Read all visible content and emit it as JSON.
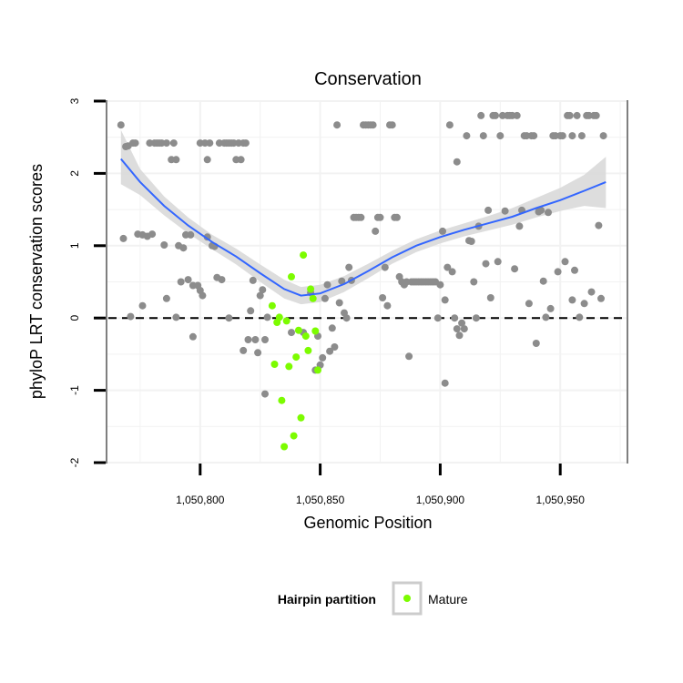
{
  "chart_data": {
    "type": "scatter",
    "title": "Conservation",
    "xlabel": "Genomic Position",
    "ylabel": "phyloP LRT conservation scores",
    "xlim": [
      1050761,
      1050978
    ],
    "ylim": [
      -2,
      3
    ],
    "x_ticks": [
      1050800,
      1050850,
      1050900,
      1050950
    ],
    "x_tick_labels": [
      "1,050,800",
      "1,050,850",
      "1,050,900",
      "1,050,950"
    ],
    "y_ticks": [
      -2,
      -1,
      0,
      1,
      2,
      3
    ],
    "y_tick_labels": [
      "-2",
      "-1",
      "0",
      "1",
      "2",
      "3"
    ],
    "grid": true,
    "reference_line": {
      "y": 0,
      "style": "dashed"
    },
    "legend": {
      "title": "Hairpin partition",
      "position": "bottom",
      "entries": [
        {
          "label": "Mature",
          "color": "#7cfc00"
        }
      ]
    },
    "colors": {
      "other": "#8c8c8c",
      "mature": "#7cfc00",
      "smooth": "#3366ff",
      "band": "#d9d9d9"
    },
    "series": [
      {
        "group": "other",
        "points": [
          [
            1050767,
            2.67
          ],
          [
            1050768,
            1.1
          ],
          [
            1050769,
            2.37
          ],
          [
            1050770,
            2.38
          ],
          [
            1050771,
            0.02
          ],
          [
            1050772,
            2.42
          ],
          [
            1050773,
            2.42
          ],
          [
            1050774,
            1.16
          ],
          [
            1050776,
            1.15
          ],
          [
            1050776,
            0.17
          ],
          [
            1050778,
            1.13
          ],
          [
            1050779,
            2.42
          ],
          [
            1050780,
            1.16
          ],
          [
            1050781,
            2.42
          ],
          [
            1050782,
            2.42
          ],
          [
            1050783,
            2.42
          ],
          [
            1050784,
            2.42
          ],
          [
            1050785,
            1.01
          ],
          [
            1050786,
            2.42
          ],
          [
            1050786,
            0.27
          ],
          [
            1050788,
            2.19
          ],
          [
            1050789,
            2.42
          ],
          [
            1050790,
            2.19
          ],
          [
            1050790,
            0.01
          ],
          [
            1050791,
            1.0
          ],
          [
            1050792,
            0.5
          ],
          [
            1050793,
            0.97
          ],
          [
            1050794,
            1.15
          ],
          [
            1050795,
            0.53
          ],
          [
            1050796,
            1.15
          ],
          [
            1050797,
            0.45
          ],
          [
            1050797,
            -0.26
          ],
          [
            1050799,
            0.45
          ],
          [
            1050800,
            2.42
          ],
          [
            1050800,
            0.38
          ],
          [
            1050801,
            0.31
          ],
          [
            1050802,
            2.42
          ],
          [
            1050803,
            2.19
          ],
          [
            1050803,
            1.12
          ],
          [
            1050804,
            2.42
          ],
          [
            1050805,
            1.0
          ],
          [
            1050806,
            0.99
          ],
          [
            1050807,
            0.56
          ],
          [
            1050808,
            2.42
          ],
          [
            1050809,
            0.53
          ],
          [
            1050810,
            2.42
          ],
          [
            1050811,
            2.42
          ],
          [
            1050812,
            0.0
          ],
          [
            1050812,
            2.42
          ],
          [
            1050813,
            2.42
          ],
          [
            1050814,
            2.42
          ],
          [
            1050815,
            2.19
          ],
          [
            1050816,
            2.42
          ],
          [
            1050817,
            2.19
          ],
          [
            1050818,
            2.42
          ],
          [
            1050818,
            -0.45
          ],
          [
            1050819,
            2.42
          ],
          [
            1050820,
            -0.3
          ],
          [
            1050821,
            0.1
          ],
          [
            1050822,
            0.52
          ],
          [
            1050823,
            -0.3
          ],
          [
            1050824,
            -0.48
          ],
          [
            1050825,
            0.31
          ],
          [
            1050826,
            0.39
          ],
          [
            1050827,
            -0.3
          ],
          [
            1050827,
            -1.05
          ],
          [
            1050828,
            0.01
          ],
          [
            1050838,
            -0.2
          ],
          [
            1050843,
            -0.2
          ],
          [
            1050846,
            0.35
          ],
          [
            1050848,
            -0.72
          ],
          [
            1050849,
            -0.25
          ],
          [
            1050850,
            -0.65
          ],
          [
            1050851,
            -0.55
          ],
          [
            1050852,
            0.27
          ],
          [
            1050853,
            0.46
          ],
          [
            1050854,
            -0.46
          ],
          [
            1050855,
            -0.14
          ],
          [
            1050856,
            -0.4
          ],
          [
            1050857,
            2.67
          ],
          [
            1050858,
            0.21
          ],
          [
            1050859,
            0.51
          ],
          [
            1050860,
            0.07
          ],
          [
            1050861,
            0.0
          ],
          [
            1050862,
            0.7
          ],
          [
            1050863,
            0.52
          ],
          [
            1050864,
            1.39
          ],
          [
            1050865,
            1.39
          ],
          [
            1050866,
            1.39
          ],
          [
            1050867,
            1.39
          ],
          [
            1050868,
            2.67
          ],
          [
            1050869,
            2.67
          ],
          [
            1050870,
            2.67
          ],
          [
            1050871,
            2.67
          ],
          [
            1050872,
            2.67
          ],
          [
            1050873,
            1.2
          ],
          [
            1050874,
            1.39
          ],
          [
            1050875,
            1.39
          ],
          [
            1050876,
            0.28
          ],
          [
            1050877,
            0.7
          ],
          [
            1050878,
            0.17
          ],
          [
            1050879,
            2.67
          ],
          [
            1050880,
            2.67
          ],
          [
            1050881,
            1.39
          ],
          [
            1050882,
            1.39
          ],
          [
            1050883,
            0.57
          ],
          [
            1050884,
            0.5
          ],
          [
            1050885,
            0.46
          ],
          [
            1050886,
            0.5
          ],
          [
            1050887,
            -0.53
          ],
          [
            1050888,
            0.5
          ],
          [
            1050889,
            0.5
          ],
          [
            1050890,
            0.5
          ],
          [
            1050891,
            0.5
          ],
          [
            1050892,
            0.5
          ],
          [
            1050893,
            0.5
          ],
          [
            1050894,
            0.5
          ],
          [
            1050895,
            0.5
          ],
          [
            1050896,
            0.5
          ],
          [
            1050897,
            0.5
          ],
          [
            1050898,
            0.5
          ],
          [
            1050899,
            0.0
          ],
          [
            1050900,
            0.46
          ],
          [
            1050901,
            1.2
          ],
          [
            1050902,
            0.25
          ],
          [
            1050902,
            -0.9
          ],
          [
            1050903,
            0.7
          ],
          [
            1050904,
            2.67
          ],
          [
            1050905,
            0.64
          ],
          [
            1050906,
            0.0
          ],
          [
            1050907,
            2.16
          ],
          [
            1050907,
            -0.15
          ],
          [
            1050908,
            -0.24
          ],
          [
            1050909,
            -0.07
          ],
          [
            1050910,
            -0.15
          ],
          [
            1050911,
            2.52
          ],
          [
            1050912,
            1.07
          ],
          [
            1050913,
            1.06
          ],
          [
            1050914,
            0.5
          ],
          [
            1050915,
            0.0
          ],
          [
            1050916,
            1.27
          ],
          [
            1050917,
            2.8
          ],
          [
            1050918,
            2.52
          ],
          [
            1050919,
            0.75
          ],
          [
            1050920,
            1.49
          ],
          [
            1050921,
            0.28
          ],
          [
            1050922,
            2.8
          ],
          [
            1050923,
            2.8
          ],
          [
            1050924,
            0.78
          ],
          [
            1050925,
            2.52
          ],
          [
            1050926,
            2.8
          ],
          [
            1050927,
            1.48
          ],
          [
            1050928,
            2.8
          ],
          [
            1050929,
            2.8
          ],
          [
            1050930,
            2.8
          ],
          [
            1050931,
            0.68
          ],
          [
            1050932,
            2.8
          ],
          [
            1050933,
            1.27
          ],
          [
            1050934,
            1.49
          ],
          [
            1050935,
            2.52
          ],
          [
            1050936,
            2.52
          ],
          [
            1050937,
            0.2
          ],
          [
            1050938,
            2.52
          ],
          [
            1050939,
            2.52
          ],
          [
            1050940,
            -0.35
          ],
          [
            1050941,
            1.47
          ],
          [
            1050942,
            1.49
          ],
          [
            1050943,
            0.51
          ],
          [
            1050944,
            0.01
          ],
          [
            1050945,
            1.46
          ],
          [
            1050946,
            0.13
          ],
          [
            1050947,
            2.52
          ],
          [
            1050948,
            2.52
          ],
          [
            1050949,
            0.64
          ],
          [
            1050950,
            2.52
          ],
          [
            1050951,
            2.52
          ],
          [
            1050952,
            0.78
          ],
          [
            1050953,
            2.8
          ],
          [
            1050954,
            2.8
          ],
          [
            1050955,
            2.52
          ],
          [
            1050955,
            0.25
          ],
          [
            1050956,
            0.66
          ],
          [
            1050957,
            2.8
          ],
          [
            1050958,
            0.01
          ],
          [
            1050959,
            2.52
          ],
          [
            1050960,
            0.2
          ],
          [
            1050961,
            2.8
          ],
          [
            1050962,
            2.8
          ],
          [
            1050963,
            0.36
          ],
          [
            1050964,
            2.8
          ],
          [
            1050965,
            2.8
          ],
          [
            1050966,
            1.28
          ],
          [
            1050967,
            0.27
          ],
          [
            1050968,
            2.52
          ]
        ]
      },
      {
        "group": "mature",
        "name": "Mature",
        "points": [
          [
            1050830,
            0.17
          ],
          [
            1050831,
            -0.64
          ],
          [
            1050832,
            -0.06
          ],
          [
            1050833,
            0.01
          ],
          [
            1050834,
            -1.14
          ],
          [
            1050835,
            -1.78
          ],
          [
            1050836,
            -0.04
          ],
          [
            1050837,
            -0.67
          ],
          [
            1050838,
            0.57
          ],
          [
            1050839,
            -1.63
          ],
          [
            1050840,
            -0.54
          ],
          [
            1050841,
            -0.17
          ],
          [
            1050842,
            -1.38
          ],
          [
            1050843,
            0.87
          ],
          [
            1050844,
            -0.25
          ],
          [
            1050845,
            -0.45
          ],
          [
            1050846,
            0.4
          ],
          [
            1050847,
            0.27
          ],
          [
            1050848,
            -0.18
          ],
          [
            1050849,
            -0.72
          ]
        ]
      }
    ],
    "smooth": {
      "x": [
        1050767,
        1050775,
        1050785,
        1050795,
        1050805,
        1050815,
        1050825,
        1050835,
        1050842,
        1050850,
        1050860,
        1050870,
        1050880,
        1050890,
        1050900,
        1050910,
        1050920,
        1050930,
        1050940,
        1050950,
        1050960,
        1050969
      ],
      "y": [
        2.2,
        1.88,
        1.55,
        1.28,
        1.05,
        0.85,
        0.62,
        0.4,
        0.31,
        0.34,
        0.47,
        0.65,
        0.84,
        1.0,
        1.12,
        1.22,
        1.31,
        1.4,
        1.52,
        1.63,
        1.76,
        1.88
      ],
      "lower": [
        1.85,
        1.7,
        1.42,
        1.17,
        0.95,
        0.74,
        0.5,
        0.27,
        0.19,
        0.22,
        0.36,
        0.55,
        0.75,
        0.91,
        1.03,
        1.13,
        1.21,
        1.29,
        1.39,
        1.48,
        1.55,
        1.52
      ],
      "upper": [
        2.6,
        2.06,
        1.68,
        1.39,
        1.15,
        0.96,
        0.74,
        0.53,
        0.43,
        0.46,
        0.58,
        0.75,
        0.93,
        1.09,
        1.21,
        1.31,
        1.41,
        1.52,
        1.66,
        1.8,
        1.98,
        2.23
      ]
    }
  }
}
